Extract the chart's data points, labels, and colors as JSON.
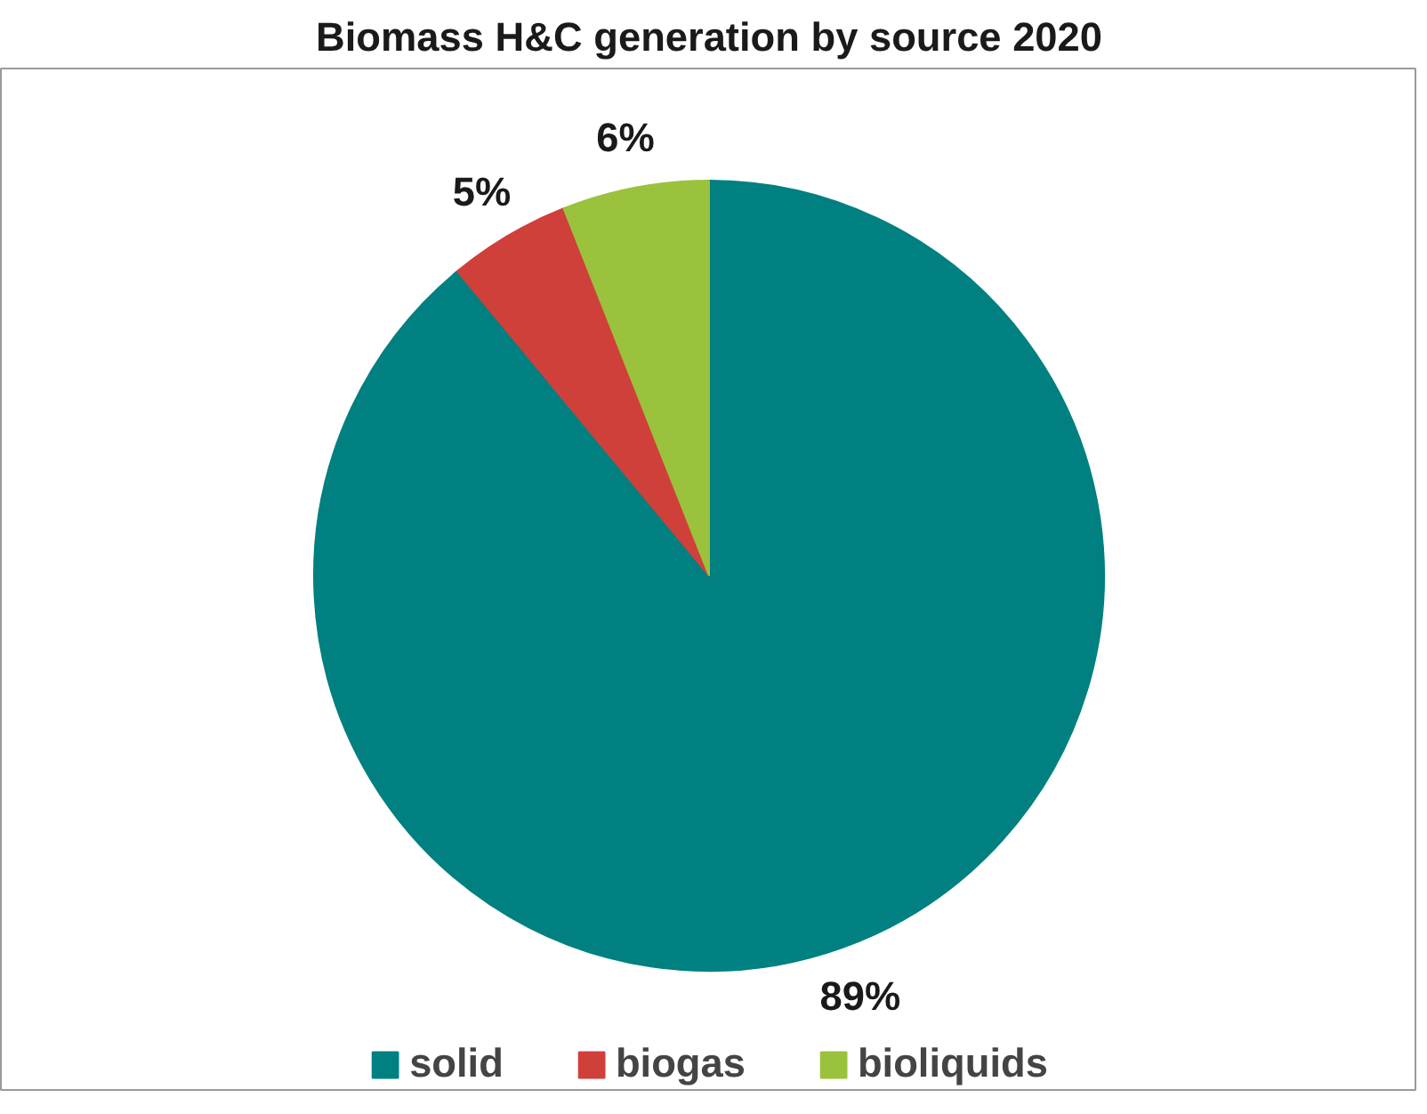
{
  "chart_data": {
    "type": "pie",
    "title": "Biomass H&C generation by source 2020",
    "categories": [
      "solid",
      "biogas",
      "bioliquids"
    ],
    "values": [
      89,
      5,
      6
    ],
    "colors": [
      "#008080",
      "#d0403a",
      "#9bc23c"
    ],
    "value_labels": [
      "89%",
      "5%",
      "6%"
    ],
    "legend": "bottom"
  }
}
